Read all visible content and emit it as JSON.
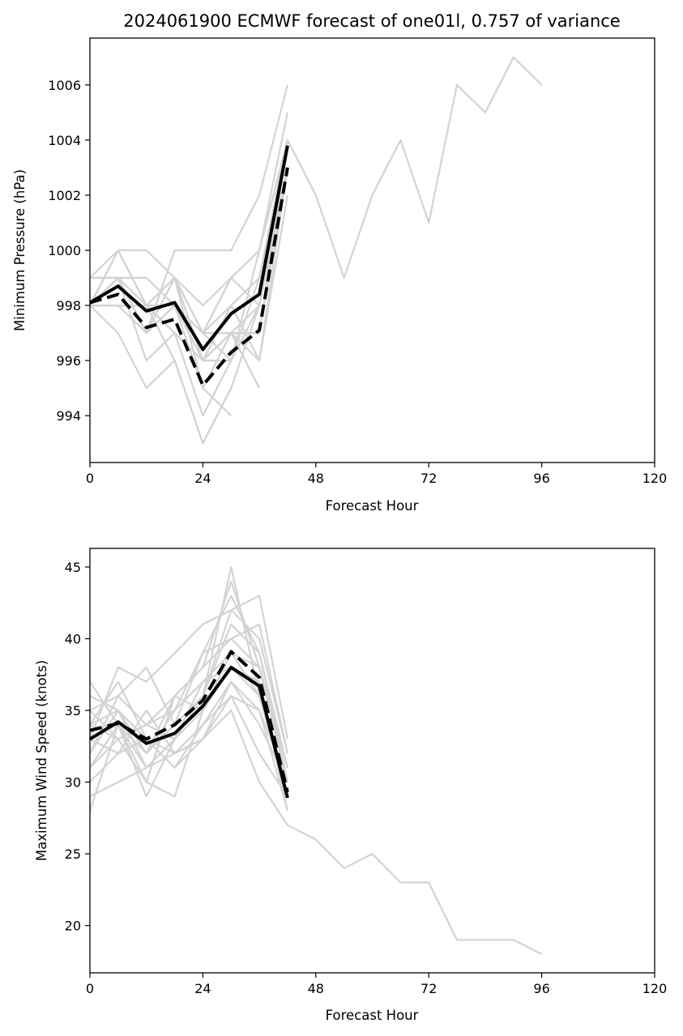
{
  "chart_data": [
    {
      "type": "line",
      "title": "2024061900 ECMWF forecast of one01l, 0.757 of variance",
      "xlabel": "Forecast Hour",
      "ylabel": "Minimum Pressure (hPa)",
      "xlim": [
        0,
        120
      ],
      "ylim": [
        992.3,
        1007.7
      ],
      "xticks": [
        "0",
        "24",
        "48",
        "72",
        "96",
        "120"
      ],
      "yticks": [
        "994",
        "996",
        "998",
        "1000",
        "1002",
        "1004",
        "1006"
      ],
      "grid": false,
      "legend": "none",
      "colors": {
        "members": "#d3d3d3",
        "summary": "#000000"
      },
      "members": [
        {
          "x": [
            0,
            6,
            12,
            18,
            24,
            30,
            36,
            42,
            48,
            54,
            60,
            66,
            72,
            78,
            84,
            90,
            96
          ],
          "values": [
            998,
            1000,
            998,
            999,
            997,
            996,
            1000,
            1004,
            1002,
            999,
            1002,
            1004,
            1001,
            1006,
            1005,
            1007,
            1006
          ]
        },
        {
          "x": [
            0,
            6,
            12,
            18,
            24,
            30,
            36,
            42
          ],
          "values": [
            999,
            999,
            997,
            1000,
            1000,
            1000,
            1002,
            1006
          ]
        },
        {
          "x": [
            0,
            6,
            12,
            18,
            24,
            30,
            36,
            42
          ],
          "values": [
            998,
            1000,
            1000,
            999,
            998,
            999,
            1000,
            1005
          ]
        },
        {
          "x": [
            0,
            6,
            12,
            18,
            24,
            30,
            36,
            42
          ],
          "values": [
            998,
            999,
            999,
            998,
            997,
            998,
            999,
            1004
          ]
        },
        {
          "x": [
            0,
            6,
            12,
            18,
            24,
            30,
            36,
            42
          ],
          "values": [
            999,
            1000,
            998,
            999,
            997,
            999,
            998,
            1003
          ]
        },
        {
          "x": [
            0,
            6,
            12,
            18,
            24,
            30,
            36,
            42
          ],
          "values": [
            998,
            997,
            995,
            996,
            993,
            995,
            998,
            1004
          ]
        },
        {
          "x": [
            0,
            6,
            12,
            18,
            24,
            30,
            36,
            42
          ],
          "values": [
            998,
            999,
            996,
            997,
            994,
            996,
            999,
            1004
          ]
        },
        {
          "x": [
            0,
            6,
            12,
            18,
            24,
            30,
            36,
            42
          ],
          "values": [
            999,
            999,
            997,
            999,
            996,
            998,
            996,
            1002
          ]
        },
        {
          "x": [
            0,
            6,
            12,
            18,
            24,
            30
          ],
          "values": [
            998,
            998,
            997,
            998,
            995,
            994
          ]
        },
        {
          "x": [
            0,
            6,
            12,
            18,
            24,
            30
          ],
          "values": [
            998,
            998,
            998,
            996,
            993,
            995
          ]
        },
        {
          "x": [
            0,
            6,
            12,
            18,
            24,
            30,
            36
          ],
          "values": [
            998,
            999,
            998,
            999,
            997,
            997,
            995
          ]
        },
        {
          "x": [
            0,
            6,
            12,
            18,
            24,
            30,
            36,
            42
          ],
          "values": [
            998,
            999,
            997,
            999,
            996,
            997,
            997,
            1003
          ]
        },
        {
          "x": [
            0,
            6,
            12,
            18,
            24,
            30,
            36,
            42
          ],
          "values": [
            998,
            998,
            998,
            997,
            996,
            997,
            996,
            1003
          ]
        },
        {
          "x": [
            0,
            6,
            12,
            18,
            24,
            30,
            36,
            42
          ],
          "values": [
            999,
            999,
            999,
            998,
            996,
            998,
            999,
            1004
          ]
        },
        {
          "x": [
            0,
            6,
            12,
            18,
            24,
            30,
            36,
            42
          ],
          "values": [
            998,
            999,
            997,
            998,
            996,
            997,
            998,
            1003
          ]
        },
        {
          "x": [
            0,
            6,
            12,
            18,
            24,
            30,
            36,
            42
          ],
          "values": [
            998,
            1000,
            998,
            998,
            997,
            999,
            1000,
            1004
          ]
        },
        {
          "x": [
            0,
            6,
            12,
            18,
            24,
            30,
            36,
            42
          ],
          "values": [
            998,
            999,
            998,
            999,
            995,
            997,
            997,
            1004
          ]
        },
        {
          "x": [
            0,
            6,
            12,
            18,
            24,
            30,
            36,
            42
          ],
          "values": [
            998,
            999,
            998,
            997,
            996,
            996,
            998,
            1003
          ]
        }
      ],
      "series": [
        {
          "style": "solid",
          "x": [
            0,
            6,
            12,
            18,
            24,
            30,
            36,
            42
          ],
          "values": [
            998.1,
            998.7,
            997.8,
            998.1,
            996.4,
            997.7,
            998.4,
            1003.8
          ]
        },
        {
          "style": "dashed",
          "x": [
            0,
            6,
            12,
            18,
            24,
            30,
            36,
            42
          ],
          "values": [
            998.1,
            998.4,
            997.2,
            997.5,
            995.1,
            996.3,
            997.1,
            1003.0
          ]
        }
      ]
    },
    {
      "type": "line",
      "title": "",
      "xlabel": "Forecast Hour",
      "ylabel": "Maximum Wind Speed (knots)",
      "xlim": [
        0,
        120
      ],
      "ylim": [
        16.7,
        46.3
      ],
      "xticks": [
        "0",
        "24",
        "48",
        "72",
        "96",
        "120"
      ],
      "yticks": [
        "20",
        "25",
        "30",
        "35",
        "40",
        "45"
      ],
      "grid": false,
      "legend": "none",
      "colors": {
        "members": "#d3d3d3",
        "summary": "#000000"
      },
      "members": [
        {
          "x": [
            0,
            6,
            12,
            18,
            24,
            30,
            36,
            42,
            48,
            54,
            60,
            66,
            72,
            78,
            84,
            90,
            96
          ],
          "values": [
            29,
            30,
            31,
            32,
            33,
            35,
            30,
            27,
            26,
            24,
            25,
            23,
            23,
            19,
            19,
            19,
            18
          ]
        },
        {
          "x": [
            0,
            6,
            12,
            18,
            24,
            30,
            36,
            42
          ],
          "values": [
            28,
            34,
            29,
            33,
            36,
            45,
            36,
            29
          ]
        },
        {
          "x": [
            0,
            6,
            12,
            18,
            24,
            30,
            36,
            42
          ],
          "values": [
            37,
            34,
            32,
            36,
            38,
            44,
            38,
            30
          ]
        },
        {
          "x": [
            0,
            6,
            12,
            18,
            24,
            30,
            36,
            42
          ],
          "values": [
            33,
            38,
            37,
            39,
            41,
            42,
            43,
            33
          ]
        },
        {
          "x": [
            0,
            6,
            12,
            18,
            24,
            30,
            36,
            42
          ],
          "values": [
            35,
            36,
            38,
            34,
            39,
            40,
            41,
            32
          ]
        },
        {
          "x": [
            0,
            6,
            12,
            18,
            24,
            30,
            36,
            42
          ],
          "values": [
            31,
            33,
            30,
            29,
            35,
            38,
            37,
            28
          ]
        },
        {
          "x": [
            0,
            6,
            12,
            18,
            24,
            30,
            36,
            42
          ],
          "values": [
            34,
            35,
            33,
            31,
            34,
            36,
            32,
            29
          ]
        },
        {
          "x": [
            0,
            6,
            12,
            18,
            24,
            30,
            36,
            42
          ],
          "values": [
            32,
            36,
            34,
            35,
            37,
            39,
            38,
            31
          ]
        },
        {
          "x": [
            0,
            6,
            12,
            18,
            24,
            30,
            36,
            42
          ],
          "values": [
            36,
            35,
            31,
            33,
            36,
            41,
            39,
            30
          ]
        },
        {
          "x": [
            0,
            6,
            12,
            18,
            24,
            30,
            36,
            42
          ],
          "values": [
            30,
            32,
            35,
            32,
            33,
            37,
            35,
            28
          ]
        },
        {
          "x": [
            0,
            6,
            12,
            18,
            24,
            30,
            36,
            42
          ],
          "values": [
            33,
            34,
            30,
            36,
            38,
            40,
            38,
            31
          ]
        },
        {
          "x": [
            0,
            6,
            12,
            18,
            24,
            30,
            36,
            42
          ],
          "values": [
            35,
            33,
            34,
            33,
            35,
            39,
            36,
            29
          ]
        },
        {
          "x": [
            0,
            6,
            12,
            18,
            24,
            30,
            36,
            42
          ],
          "values": [
            32,
            35,
            32,
            34,
            36,
            42,
            40,
            32
          ]
        },
        {
          "x": [
            0,
            6,
            12,
            18,
            24,
            30,
            36,
            42
          ],
          "values": [
            34,
            37,
            33,
            32,
            34,
            37,
            34,
            30
          ]
        },
        {
          "x": [
            0,
            6,
            12,
            18,
            24,
            30,
            36,
            42
          ],
          "values": [
            31,
            34,
            31,
            33,
            37,
            38,
            37,
            29
          ]
        },
        {
          "x": [
            0,
            6,
            12,
            18,
            24,
            30,
            36,
            42
          ],
          "values": [
            33,
            32,
            33,
            31,
            33,
            36,
            35,
            30
          ]
        },
        {
          "x": [
            0,
            6,
            12,
            18,
            24,
            30,
            36,
            42
          ],
          "values": [
            36,
            35,
            32,
            35,
            39,
            43,
            39,
            31
          ]
        },
        {
          "x": [
            0,
            6,
            12,
            18,
            24,
            30,
            36,
            42
          ],
          "values": [
            34,
            33,
            34,
            36,
            35,
            38,
            36,
            30
          ]
        }
      ],
      "series": [
        {
          "style": "solid",
          "x": [
            0,
            6,
            12,
            18,
            24,
            30,
            36,
            42
          ],
          "values": [
            33.0,
            34.2,
            32.7,
            33.4,
            35.3,
            38.0,
            36.7,
            28.9
          ]
        },
        {
          "style": "dashed",
          "x": [
            0,
            6,
            12,
            18,
            24,
            30,
            36,
            42
          ],
          "values": [
            33.6,
            34.1,
            33.0,
            34.0,
            35.7,
            39.1,
            37.3,
            29.3
          ]
        }
      ]
    }
  ]
}
